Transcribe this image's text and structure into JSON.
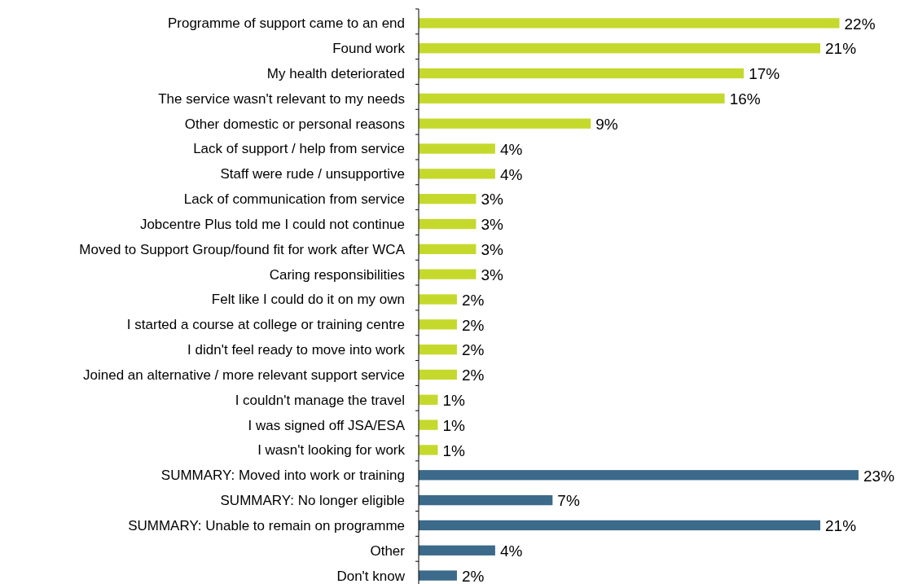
{
  "chart_data": {
    "type": "bar",
    "orientation": "horizontal",
    "categories": [
      "Programme of support came to an end",
      "Found work",
      "My health deteriorated",
      "The service wasn't relevant to my needs",
      "Other domestic or personal reasons",
      "Lack of support / help from service",
      "Staff were rude / unsupportive",
      "Lack of communication from service",
      "Jobcentre Plus told me I could not continue",
      "Moved to Support Group/found fit for work after WCA",
      "Caring responsibilities",
      "Felt like I could do it on my own",
      "I started a course at college or training centre",
      "I didn't feel ready to move into work",
      "Joined an alternative / more relevant support service",
      "I couldn't manage the travel",
      "I was signed off JSA/ESA",
      "I wasn't looking for work",
      "SUMMARY: Moved into work or training",
      "SUMMARY: No longer eligible",
      "SUMMARY: Unable to remain on programme",
      "Other",
      "Don't know"
    ],
    "values": [
      22,
      21,
      17,
      16,
      9,
      4,
      4,
      3,
      3,
      3,
      3,
      2,
      2,
      2,
      2,
      1,
      1,
      1,
      23,
      7,
      21,
      4,
      2
    ],
    "value_labels": [
      "22%",
      "21%",
      "17%",
      "16%",
      "9%",
      "4%",
      "4%",
      "3%",
      "3%",
      "3%",
      "3%",
      "2%",
      "2%",
      "2%",
      "2%",
      "1%",
      "1%",
      "1%",
      "23%",
      "7%",
      "21%",
      "4%",
      "2%"
    ],
    "colors": [
      "#c5d92d",
      "#c5d92d",
      "#c5d92d",
      "#c5d92d",
      "#c5d92d",
      "#c5d92d",
      "#c5d92d",
      "#c5d92d",
      "#c5d92d",
      "#c5d92d",
      "#c5d92d",
      "#c5d92d",
      "#c5d92d",
      "#c5d92d",
      "#c5d92d",
      "#c5d92d",
      "#c5d92d",
      "#c5d92d",
      "#3b6a8b",
      "#3b6a8b",
      "#3b6a8b",
      "#3b6a8b",
      "#3b6a8b"
    ]
  }
}
